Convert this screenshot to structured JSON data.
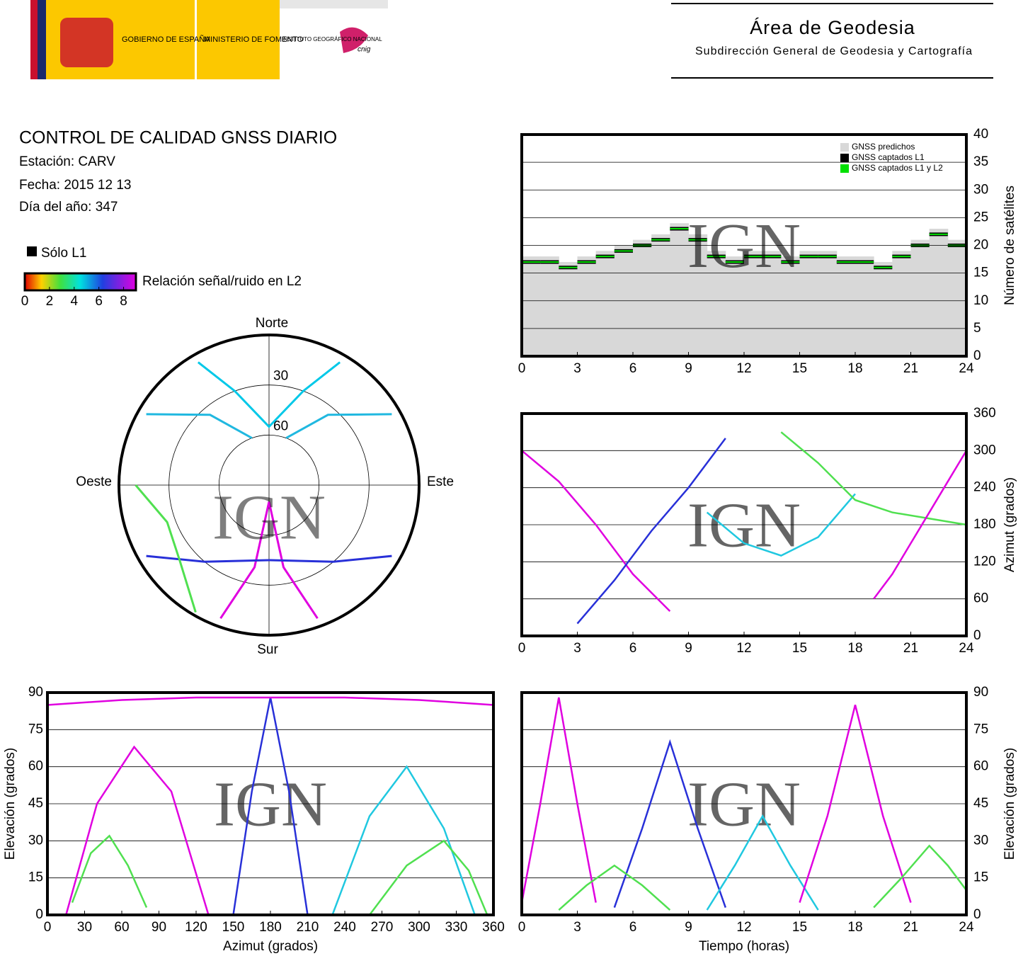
{
  "header": {
    "gov": "GOBIERNO DE ESPAÑA",
    "ministry": "MINISTERIO DE FOMENTO",
    "institute": "INSTITUTO GEOGRÁFICO NACIONAL",
    "cnig": "cnig",
    "area": "Área de Geodesia",
    "subarea": "Subdirección General de Geodesia y Cartografía"
  },
  "info": {
    "title": "CONTROL DE CALIDAD GNSS DIARIO",
    "station": "Estación: CARV",
    "date": "Fecha: 2015 12 13",
    "doy": "Día del año: 347",
    "l1_only": "Sólo L1",
    "colorbar_label": "Relación señal/ruido en L2",
    "clim": [
      0,
      9
    ],
    "cticks": [
      0,
      2,
      4,
      6,
      8
    ]
  },
  "watermark": "IGN",
  "skyplot": {
    "type": "polar",
    "north": "Norte",
    "south": "Sur",
    "east": "Este",
    "west": "Oeste",
    "rings": [
      30,
      60
    ],
    "tracks": [
      {
        "color": "#00c8e8",
        "az": [
          330,
          340,
          0,
          20,
          30
        ],
        "el": [
          5,
          30,
          55,
          30,
          5
        ]
      },
      {
        "color": "#e000e0",
        "az": [
          200,
          190,
          180,
          170,
          160
        ],
        "el": [
          5,
          40,
          80,
          40,
          5
        ]
      },
      {
        "color": "#2830d8",
        "az": [
          240,
          220,
          180,
          140,
          120
        ],
        "el": [
          5,
          30,
          45,
          30,
          5
        ]
      },
      {
        "color": "#20b8e0",
        "az": [
          300,
          320,
          340
        ],
        "el": [
          5,
          35,
          60
        ]
      },
      {
        "color": "#20b8e0",
        "az": [
          60,
          40,
          20
        ],
        "el": [
          5,
          35,
          60
        ]
      },
      {
        "color": "#50e050",
        "az": [
          210,
          230,
          250,
          270
        ],
        "el": [
          2,
          20,
          25,
          10
        ]
      }
    ]
  },
  "chart_data": [
    {
      "type": "step",
      "x": [
        0,
        1,
        2,
        3,
        4,
        5,
        6,
        7,
        8,
        9,
        10,
        11,
        12,
        13,
        14,
        15,
        16,
        17,
        18,
        19,
        20,
        21,
        22,
        23,
        24
      ],
      "xlim": [
        0,
        24
      ],
      "xticks": [
        0,
        3,
        6,
        9,
        12,
        15,
        18,
        21,
        24
      ],
      "ylim": [
        0,
        40
      ],
      "yticks": [
        0,
        5,
        10,
        15,
        20,
        25,
        30,
        35,
        40
      ],
      "ylabel": "Número de satélites",
      "legend": "upper right",
      "series": [
        {
          "name": "GNSS predichos",
          "color": "#d8d8d8",
          "values": [
            18,
            18,
            17,
            18,
            19,
            20,
            21,
            22,
            24,
            22,
            19,
            18,
            19,
            19,
            18,
            19,
            19,
            18,
            18,
            17,
            19,
            21,
            23,
            21,
            19
          ]
        },
        {
          "name": "GNSS captados L1",
          "color": "#000000",
          "values": [
            17,
            17,
            16,
            17,
            18,
            19,
            20,
            21,
            23,
            21,
            18,
            17,
            18,
            18,
            17,
            18,
            18,
            17,
            17,
            16,
            18,
            20,
            22,
            20,
            18
          ]
        },
        {
          "name": "GNSS captados L1 y L2",
          "color": "#00e000",
          "values": [
            17,
            17,
            16,
            17,
            18,
            19,
            20,
            21,
            23,
            21,
            18,
            17,
            18,
            18,
            17,
            18,
            18,
            17,
            17,
            16,
            18,
            20,
            22,
            20,
            18
          ]
        }
      ]
    },
    {
      "type": "line",
      "xlim": [
        0,
        24
      ],
      "xticks": [
        0,
        3,
        6,
        9,
        12,
        15,
        18,
        21,
        24
      ],
      "ylim": [
        0,
        360
      ],
      "yticks": [
        0,
        60,
        120,
        180,
        240,
        300,
        360
      ],
      "ylabel": "Azimut (grados)",
      "series": [
        {
          "color": "#e000e0",
          "x": [
            0,
            2,
            4,
            6,
            8
          ],
          "values": [
            300,
            250,
            180,
            100,
            40
          ]
        },
        {
          "color": "#2830d8",
          "x": [
            3,
            5,
            7,
            9,
            11
          ],
          "values": [
            20,
            90,
            170,
            240,
            320
          ]
        },
        {
          "color": "#20c8e0",
          "x": [
            10,
            12,
            14,
            16,
            18
          ],
          "values": [
            200,
            150,
            130,
            160,
            230
          ]
        },
        {
          "color": "#50e050",
          "x": [
            14,
            16,
            18,
            20,
            22,
            24
          ],
          "values": [
            330,
            280,
            220,
            200,
            190,
            180
          ]
        },
        {
          "color": "#e000e0",
          "x": [
            19,
            20,
            21,
            22,
            23,
            24
          ],
          "values": [
            60,
            100,
            150,
            200,
            250,
            300
          ]
        }
      ]
    },
    {
      "type": "line",
      "xlim": [
        0,
        360
      ],
      "xticks": [
        0,
        30,
        60,
        90,
        120,
        150,
        180,
        210,
        240,
        270,
        300,
        330,
        360
      ],
      "ylim": [
        0,
        90
      ],
      "yticks": [
        0,
        15,
        30,
        45,
        60,
        75,
        90
      ],
      "xlabel": "Azimut (grados)",
      "ylabel": "Elevación (grados)",
      "series": [
        {
          "color": "#e000e0",
          "x": [
            15,
            40,
            70,
            100,
            130
          ],
          "values": [
            0,
            45,
            68,
            50,
            0
          ]
        },
        {
          "color": "#2830d8",
          "x": [
            150,
            165,
            180,
            195,
            210
          ],
          "values": [
            0,
            50,
            88,
            50,
            0
          ]
        },
        {
          "color": "#20c8e0",
          "x": [
            230,
            260,
            290,
            320,
            345
          ],
          "values": [
            0,
            40,
            60,
            35,
            0
          ]
        },
        {
          "color": "#50e050",
          "x": [
            20,
            35,
            50,
            65,
            80
          ],
          "values": [
            5,
            25,
            32,
            20,
            3
          ]
        },
        {
          "color": "#e000e0",
          "x": [
            0,
            60,
            120,
            180,
            240,
            300,
            360
          ],
          "values": [
            85,
            87,
            88,
            88,
            88,
            87,
            85
          ]
        },
        {
          "color": "#50e050",
          "x": [
            260,
            290,
            320,
            340,
            355
          ],
          "values": [
            0,
            20,
            30,
            18,
            0
          ]
        }
      ]
    },
    {
      "type": "line",
      "xlim": [
        0,
        24
      ],
      "xticks": [
        0,
        3,
        6,
        9,
        12,
        15,
        18,
        21,
        24
      ],
      "ylim": [
        0,
        90
      ],
      "yticks": [
        0,
        15,
        30,
        45,
        60,
        75,
        90
      ],
      "xlabel": "Tiempo (horas)",
      "ylabel": "Elevación (grados)",
      "series": [
        {
          "color": "#e000e0",
          "x": [
            0,
            1,
            2,
            3,
            4
          ],
          "values": [
            5,
            45,
            88,
            45,
            5
          ]
        },
        {
          "color": "#2830d8",
          "x": [
            5,
            6.5,
            8,
            9.5,
            11
          ],
          "values": [
            3,
            35,
            70,
            35,
            3
          ]
        },
        {
          "color": "#20c8e0",
          "x": [
            10,
            11.5,
            13,
            14.5,
            16
          ],
          "values": [
            2,
            20,
            40,
            20,
            2
          ]
        },
        {
          "color": "#e000e0",
          "x": [
            15,
            16.5,
            18,
            19.5,
            21
          ],
          "values": [
            5,
            40,
            85,
            40,
            5
          ]
        },
        {
          "color": "#50e050",
          "x": [
            19,
            20.5,
            22,
            23,
            24
          ],
          "values": [
            3,
            15,
            28,
            20,
            10
          ]
        },
        {
          "color": "#50e050",
          "x": [
            2,
            3.5,
            5,
            6.5,
            8
          ],
          "values": [
            2,
            12,
            20,
            12,
            2
          ]
        }
      ]
    }
  ]
}
